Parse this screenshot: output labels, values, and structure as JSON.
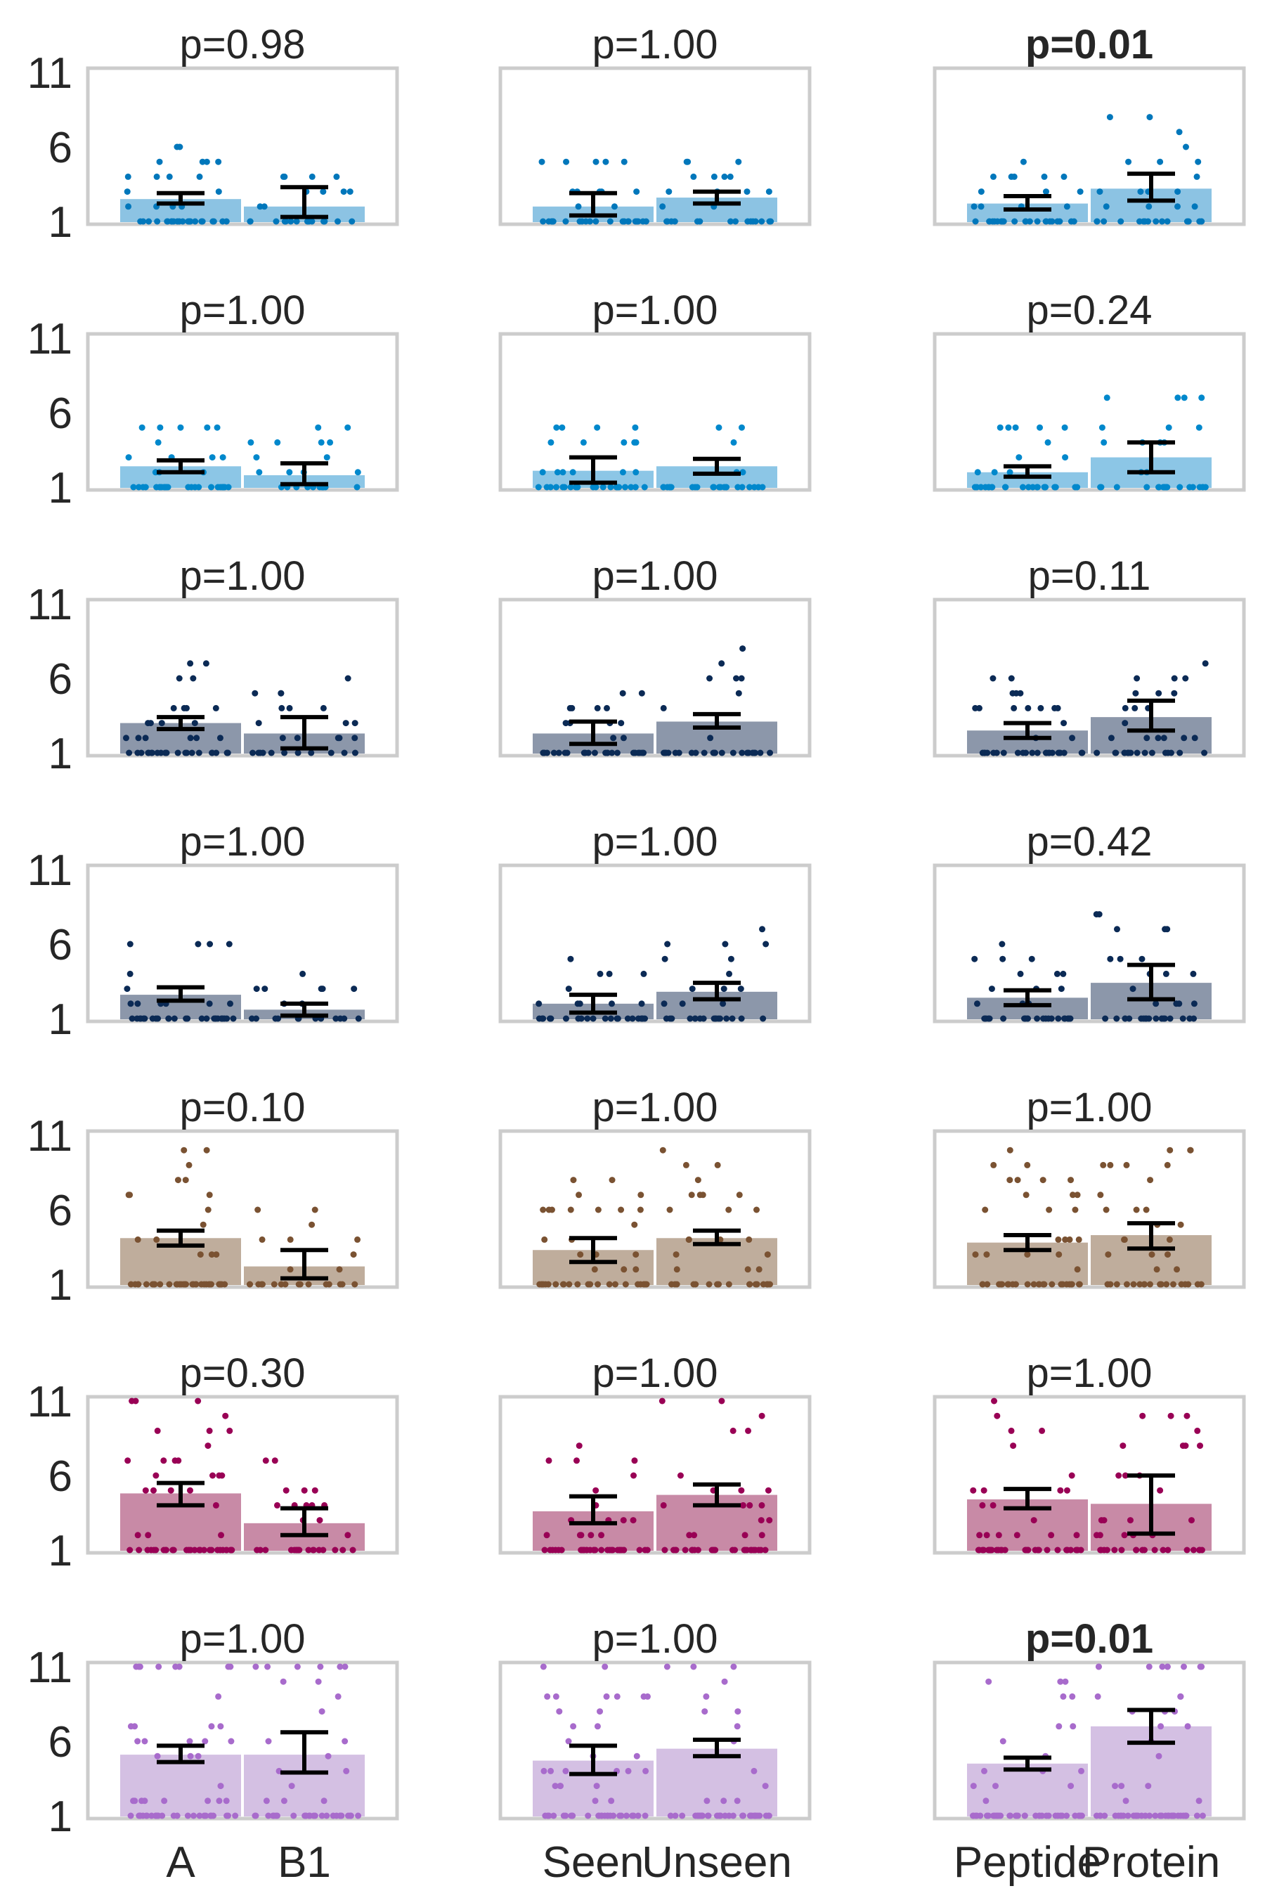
{
  "chart_data": {
    "type": "bar",
    "y_ticks": [
      1,
      6,
      11
    ],
    "ylim": [
      1,
      11
    ],
    "grid": false,
    "column_categories": [
      [
        "A",
        "B1"
      ],
      [
        "Seen",
        "Unseen"
      ],
      [
        "Peptide",
        "Protein"
      ]
    ],
    "rows": [
      {
        "color": "#0077bb",
        "bar_color": "#8cc3e3",
        "panels": [
          {
            "title": "p=0.98",
            "bold": false,
            "values": [
              2.5,
              2.0
            ],
            "ci": [
              [
                2.2,
                2.9
              ],
              [
                1.3,
                3.3
              ]
            ]
          },
          {
            "title": "p=1.00",
            "bold": false,
            "values": [
              2.0,
              2.6
            ],
            "ci": [
              [
                1.4,
                2.9
              ],
              [
                2.2,
                3.0
              ]
            ]
          },
          {
            "title": "p=0.01",
            "bold": true,
            "values": [
              2.2,
              3.2
            ],
            "ci": [
              [
                1.8,
                2.7
              ],
              [
                2.4,
                4.2
              ]
            ]
          }
        ]
      },
      {
        "color": "#0088cc",
        "bar_color": "#8cc6e6",
        "panels": [
          {
            "title": "p=1.00",
            "bold": false,
            "values": [
              2.4,
              1.8
            ],
            "ci": [
              [
                2.0,
                2.8
              ],
              [
                1.2,
                2.6
              ]
            ]
          },
          {
            "title": "p=1.00",
            "bold": false,
            "values": [
              2.1,
              2.4
            ],
            "ci": [
              [
                1.3,
                3.0
              ],
              [
                1.9,
                2.9
              ]
            ]
          },
          {
            "title": "p=0.24",
            "bold": false,
            "values": [
              2.0,
              3.0
            ],
            "ci": [
              [
                1.7,
                2.4
              ],
              [
                2.0,
                4.0
              ]
            ]
          }
        ]
      },
      {
        "color": "#0b2a55",
        "bar_color": "#8c97aa",
        "panels": [
          {
            "title": "p=1.00",
            "bold": false,
            "values": [
              3.0,
              2.3
            ],
            "ci": [
              [
                2.6,
                3.4
              ],
              [
                1.3,
                3.4
              ]
            ]
          },
          {
            "title": "p=1.00",
            "bold": false,
            "values": [
              2.3,
              3.1
            ],
            "ci": [
              [
                1.6,
                3.1
              ],
              [
                2.7,
                3.6
              ]
            ]
          },
          {
            "title": "p=0.11",
            "bold": false,
            "values": [
              2.5,
              3.4
            ],
            "ci": [
              [
                2.0,
                3.0
              ],
              [
                2.5,
                4.5
              ]
            ]
          }
        ]
      },
      {
        "color": "#0b2a55",
        "bar_color": "#8c97aa",
        "panels": [
          {
            "title": "p=1.00",
            "bold": false,
            "values": [
              2.6,
              1.6
            ],
            "ci": [
              [
                2.2,
                3.1
              ],
              [
                1.2,
                2.0
              ]
            ]
          },
          {
            "title": "p=1.00",
            "bold": false,
            "values": [
              2.0,
              2.8
            ],
            "ci": [
              [
                1.4,
                2.6
              ],
              [
                2.3,
                3.4
              ]
            ]
          },
          {
            "title": "p=0.42",
            "bold": false,
            "values": [
              2.4,
              3.4
            ],
            "ci": [
              [
                1.9,
                2.9
              ],
              [
                2.3,
                4.6
              ]
            ]
          }
        ]
      },
      {
        "color": "#7a5232",
        "bar_color": "#bfad9c",
        "panels": [
          {
            "title": "p=0.10",
            "bold": false,
            "values": [
              4.1,
              2.2
            ],
            "ci": [
              [
                3.6,
                4.6
              ],
              [
                1.4,
                3.3
              ]
            ]
          },
          {
            "title": "p=1.00",
            "bold": false,
            "values": [
              3.3,
              4.1
            ],
            "ci": [
              [
                2.5,
                4.1
              ],
              [
                3.7,
                4.6
              ]
            ]
          },
          {
            "title": "p=1.00",
            "bold": false,
            "values": [
              3.8,
              4.3
            ],
            "ci": [
              [
                3.3,
                4.3
              ],
              [
                3.4,
                5.1
              ]
            ]
          }
        ]
      },
      {
        "color": "#990055",
        "bar_color": "#c88aa6",
        "panels": [
          {
            "title": "p=0.30",
            "bold": false,
            "values": [
              4.8,
              2.8
            ],
            "ci": [
              [
                4.0,
                5.5
              ],
              [
                2.0,
                3.8
              ]
            ]
          },
          {
            "title": "p=1.00",
            "bold": false,
            "values": [
              3.6,
              4.7
            ],
            "ci": [
              [
                2.8,
                4.6
              ],
              [
                4.0,
                5.4
              ]
            ]
          },
          {
            "title": "p=1.00",
            "bold": false,
            "values": [
              4.4,
              4.1
            ],
            "ci": [
              [
                3.8,
                5.1
              ],
              [
                2.1,
                6.0
              ]
            ]
          }
        ]
      },
      {
        "color": "#a86bcc",
        "bar_color": "#d4c0e3",
        "panels": [
          {
            "title": "p=1.00",
            "bold": false,
            "values": [
              5.1,
              5.1
            ],
            "ci": [
              [
                4.6,
                5.7
              ],
              [
                3.9,
                6.6
              ]
            ]
          },
          {
            "title": "p=1.00",
            "bold": false,
            "values": [
              4.7,
              5.5
            ],
            "ci": [
              [
                3.8,
                5.7
              ],
              [
                5.0,
                6.1
              ]
            ]
          },
          {
            "title": "p=0.01",
            "bold": true,
            "values": [
              4.5,
              7.0
            ],
            "ci": [
              [
                4.1,
                4.9
              ],
              [
                5.9,
                8.1
              ]
            ]
          }
        ]
      }
    ]
  }
}
